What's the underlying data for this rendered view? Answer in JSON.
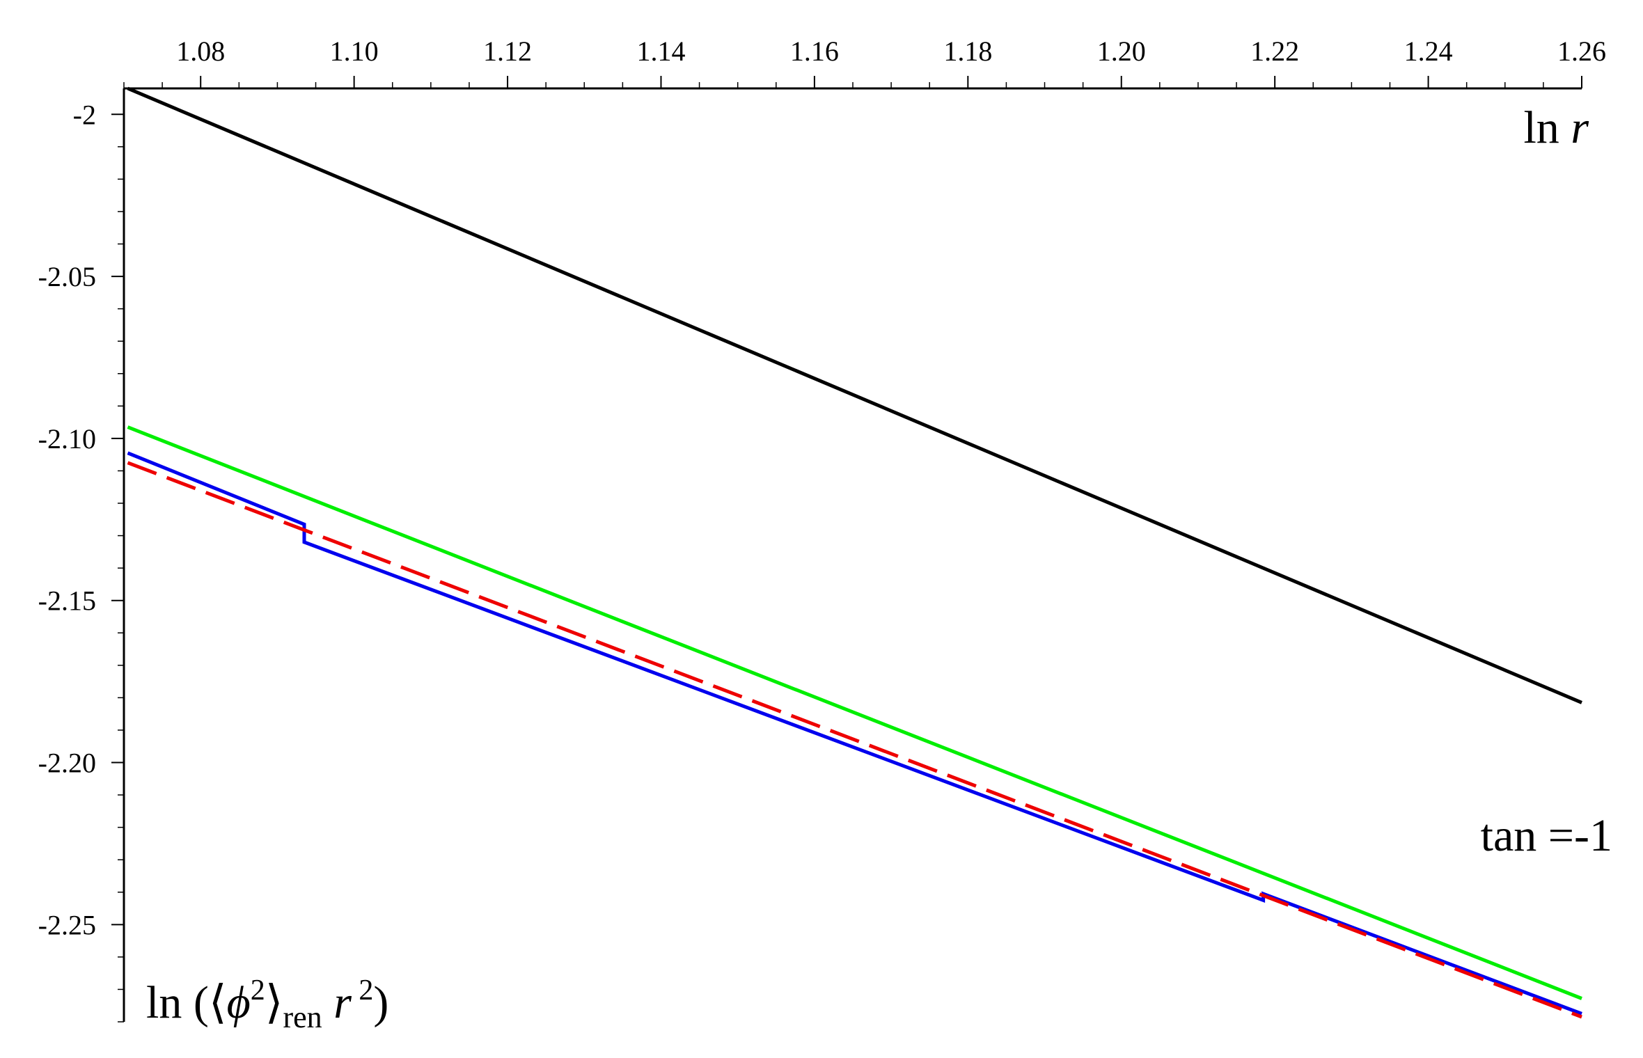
{
  "chart_data": {
    "type": "line",
    "title": "",
    "xlabel_parts": [
      "ln ",
      "r"
    ],
    "ylabel_parts": [
      "ln (",
      "⟨",
      "ϕ",
      "2",
      "⟩",
      "ren",
      " ",
      "r",
      " 2",
      ")"
    ],
    "annotation": "tan =-1",
    "xlim": [
      1.07,
      1.26
    ],
    "ylim": [
      -2.28,
      -1.992
    ],
    "x_ticks": [
      1.08,
      1.1,
      1.12,
      1.14,
      1.16,
      1.18,
      1.2,
      1.22,
      1.24,
      1.26
    ],
    "x_tick_labels": [
      "1.08",
      "1.10",
      "1.12",
      "1.14",
      "1.16",
      "1.18",
      "1.20",
      "1.22",
      "1.24",
      "1.26"
    ],
    "y_ticks": [
      -2.0,
      -2.05,
      -2.1,
      -2.15,
      -2.2,
      -2.25
    ],
    "y_tick_labels": [
      "-2",
      "-2.05",
      "-2.10",
      "-2.15",
      "-2.20",
      "-2.25"
    ],
    "grid": false,
    "series": [
      {
        "color": "#000000",
        "dash": "solid",
        "points": [
          [
            1.0705,
            -1.992
          ],
          [
            1.26,
            -2.1815
          ]
        ]
      },
      {
        "color": "#00ee00",
        "dash": "solid",
        "points": [
          [
            1.0705,
            -2.0965
          ],
          [
            1.26,
            -2.2728
          ]
        ]
      },
      {
        "color": "#0000ee",
        "dash": "solid",
        "points": [
          [
            1.0705,
            -2.1045
          ],
          [
            1.0935,
            -2.1265
          ],
          [
            1.0935,
            -2.132
          ],
          [
            1.2185,
            -2.2425
          ],
          [
            1.2185,
            -2.2405
          ],
          [
            1.26,
            -2.2775
          ]
        ]
      },
      {
        "color": "#ee0000",
        "dash": "dashed",
        "points": [
          [
            1.0705,
            -2.1075
          ],
          [
            1.26,
            -2.2785
          ]
        ]
      }
    ]
  }
}
